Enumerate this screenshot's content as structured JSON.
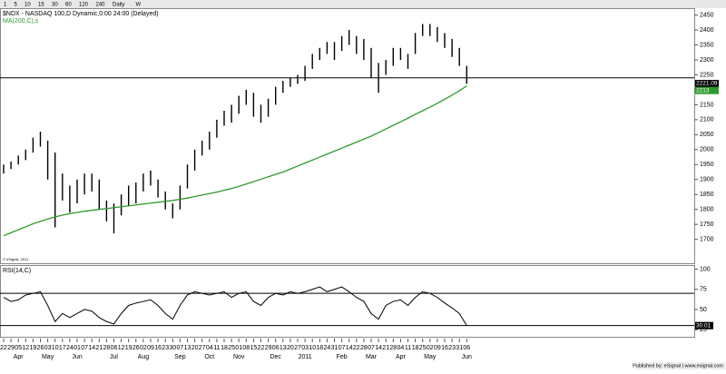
{
  "toolbar": [
    "1",
    "5",
    "10",
    "15",
    "30",
    "60",
    "120",
    "240",
    "Daily",
    "W"
  ],
  "footer": "Published by: eSignal | www.esignal.com",
  "copyright": "© eSignal, 2011",
  "chart_data": [
    {
      "type": "ohlc",
      "title": "$NDX - NASDAQ 100,D Dynamic,0:00 24:00 (Delayed)",
      "categories": [
        "22",
        "29",
        "05",
        "12",
        "19",
        "26",
        "03",
        "10",
        "17",
        "24",
        "01",
        "07",
        "14",
        "21",
        "28",
        "06",
        "12",
        "19",
        "26",
        "02",
        "09",
        "16",
        "23",
        "30",
        "07",
        "13",
        "20",
        "27",
        "04",
        "11",
        "18",
        "25",
        "01",
        "08",
        "15",
        "22",
        "29",
        "06",
        "13",
        "20",
        "27",
        "03",
        "10",
        "18",
        "24",
        "31",
        "07",
        "14",
        "22",
        "28",
        "07",
        "14",
        "21",
        "28",
        "04",
        "11",
        "18",
        "25",
        "02",
        "09",
        "16",
        "23",
        "31",
        "06"
      ],
      "months": [
        null,
        null,
        "Apr",
        null,
        null,
        null,
        "May",
        null,
        null,
        null,
        "Jun",
        null,
        null,
        null,
        null,
        "Jul",
        null,
        null,
        null,
        "Aug",
        null,
        null,
        null,
        null,
        "Sep",
        null,
        null,
        null,
        "Oct",
        null,
        null,
        null,
        "Nov",
        null,
        null,
        null,
        null,
        "Dec",
        null,
        null,
        null,
        "2011",
        null,
        null,
        null,
        null,
        "Feb",
        null,
        null,
        null,
        "Mar",
        null,
        null,
        null,
        "Apr",
        null,
        null,
        null,
        "May",
        null,
        null,
        null,
        null,
        "Jun"
      ],
      "series": [
        {
          "name": "high",
          "color": "#000000",
          "values": [
            1950,
            1960,
            1980,
            2000,
            2040,
            2060,
            2030,
            1990,
            1920,
            1880,
            1900,
            1920,
            1920,
            1900,
            1830,
            1820,
            1850,
            1880,
            1890,
            1920,
            1930,
            1900,
            1860,
            1820,
            1880,
            1950,
            2000,
            2030,
            2060,
            2100,
            2130,
            2150,
            2180,
            2200,
            2190,
            2150,
            2170,
            2210,
            2230,
            2240,
            2250,
            2280,
            2320,
            2340,
            2360,
            2360,
            2380,
            2400,
            2380,
            2370,
            2340,
            2290,
            2300,
            2340,
            2340,
            2320,
            2390,
            2420,
            2420,
            2410,
            2390,
            2370,
            2340,
            2280
          ]
        },
        {
          "name": "low",
          "color": "#000000",
          "values": [
            1920,
            1935,
            1950,
            1965,
            1990,
            2010,
            1900,
            1740,
            1830,
            1790,
            1820,
            1850,
            1860,
            1800,
            1760,
            1720,
            1780,
            1810,
            1820,
            1860,
            1880,
            1840,
            1800,
            1770,
            1800,
            1870,
            1930,
            1980,
            2000,
            2040,
            2080,
            2090,
            2120,
            2150,
            2110,
            2090,
            2110,
            2150,
            2190,
            2210,
            2220,
            2230,
            2270,
            2300,
            2320,
            2300,
            2330,
            2350,
            2320,
            2300,
            2240,
            2190,
            2250,
            2280,
            2300,
            2270,
            2320,
            2380,
            2380,
            2360,
            2340,
            2310,
            2280,
            2220
          ]
        }
      ],
      "ma_label": "MA(200,C),s",
      "ma": {
        "name": "MA(200,C)",
        "color": "#2e9a2e",
        "values": [
          1712,
          1722,
          1732,
          1742,
          1752,
          1760,
          1768,
          1775,
          1781,
          1786,
          1790,
          1794,
          1797,
          1800,
          1803,
          1806,
          1809,
          1812,
          1815,
          1818,
          1821,
          1824,
          1827,
          1830,
          1834,
          1838,
          1843,
          1848,
          1853,
          1858,
          1864,
          1870,
          1877,
          1885,
          1893,
          1901,
          1909,
          1917,
          1925,
          1935,
          1945,
          1955,
          1965,
          1975,
          1985,
          1995,
          2005,
          2015,
          2025,
          2035,
          2045,
          2057,
          2069,
          2081,
          2093,
          2105,
          2118,
          2130,
          2142,
          2155,
          2168,
          2182,
          2197,
          2213
        ]
      },
      "last_price": 2221.09,
      "hline": 2240,
      "ylim": [
        1620,
        2470
      ],
      "yticks": [
        1700,
        1750,
        1800,
        1850,
        1900,
        1950,
        2000,
        2050,
        2100,
        2150,
        2200,
        2250,
        2300,
        2350,
        2400,
        2450
      ]
    },
    {
      "type": "line",
      "title": "RSI(14,C)",
      "series": [
        {
          "name": "RSI",
          "color": "#000000",
          "values": [
            65,
            60,
            62,
            68,
            70,
            72,
            55,
            35,
            45,
            40,
            45,
            50,
            48,
            40,
            35,
            32,
            45,
            55,
            58,
            60,
            62,
            55,
            45,
            38,
            55,
            68,
            72,
            70,
            68,
            70,
            72,
            65,
            70,
            72,
            60,
            55,
            65,
            70,
            68,
            72,
            70,
            72,
            75,
            78,
            72,
            75,
            78,
            72,
            65,
            60,
            45,
            38,
            55,
            60,
            62,
            55,
            65,
            72,
            70,
            65,
            58,
            52,
            45,
            30.01
          ]
        }
      ],
      "hlines": [
        70,
        30
      ],
      "ylim": [
        15,
        104
      ],
      "yticks": [
        100,
        75,
        50,
        25
      ]
    }
  ]
}
